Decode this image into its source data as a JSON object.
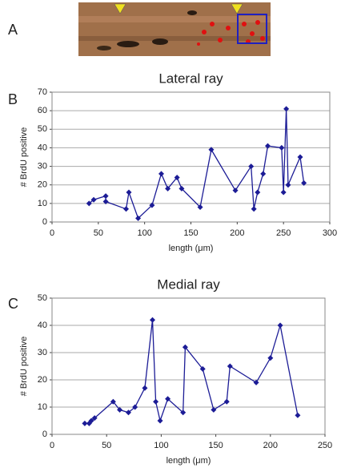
{
  "panels": [
    "A",
    "B",
    "C"
  ],
  "chart_data": [
    {
      "type": "line",
      "title": "Lateral ray",
      "x_label": "length (μm)",
      "y_label": "# BrdU positive",
      "x": [
        40,
        45,
        58,
        58,
        80,
        83,
        93,
        108,
        118,
        125,
        135,
        140,
        160,
        172,
        198,
        215,
        218,
        222,
        228,
        233,
        248,
        250,
        253,
        255,
        268,
        272
      ],
      "values": [
        10,
        12,
        14,
        11,
        7,
        16,
        2,
        9,
        26,
        18,
        24,
        18,
        8,
        39,
        17,
        30,
        7,
        16,
        26,
        41,
        40,
        16,
        61,
        20,
        35,
        21
      ],
      "color": "#1c1c96",
      "xlim": [
        0,
        300
      ],
      "xticks": [
        0,
        50,
        100,
        150,
        200,
        250,
        300
      ],
      "ylim": [
        0,
        70
      ],
      "yticks": [
        0,
        10,
        20,
        30,
        40,
        50,
        60,
        70
      ],
      "grid": true
    },
    {
      "type": "line",
      "title": "Medial ray",
      "x_label": "length (μm)",
      "y_label": "# BrdU positive",
      "x": [
        30,
        34,
        36,
        39,
        56,
        62,
        70,
        76,
        85,
        92,
        95,
        99,
        106,
        120,
        122,
        138,
        148,
        160,
        163,
        187,
        200,
        209,
        225
      ],
      "values": [
        4,
        4,
        5,
        6,
        12,
        9,
        8,
        10,
        17,
        42,
        12,
        5,
        13,
        8,
        32,
        24,
        9,
        12,
        25,
        19,
        28,
        40,
        7
      ],
      "color": "#1c1c96",
      "xlim": [
        0,
        250
      ],
      "xticks": [
        0,
        50,
        100,
        150,
        200,
        250
      ],
      "ylim": [
        0,
        50
      ],
      "yticks": [
        0,
        10,
        20,
        30,
        40,
        50
      ],
      "grid": true
    }
  ]
}
